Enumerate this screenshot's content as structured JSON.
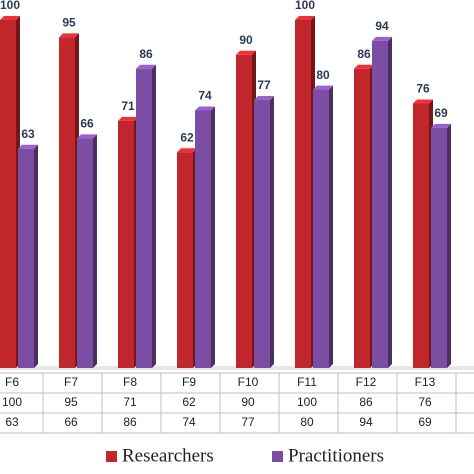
{
  "chart_data": {
    "type": "bar",
    "categories": [
      "F6",
      "F7",
      "F8",
      "F9",
      "F10",
      "F11",
      "F12",
      "F13"
    ],
    "series": [
      {
        "name": "Researchers",
        "color": "#c0262b",
        "values": [
          100,
          95,
          71,
          62,
          90,
          100,
          86,
          76
        ]
      },
      {
        "name": "Practitioners",
        "color": "#7b4ea3",
        "values": [
          63,
          66,
          86,
          74,
          77,
          80,
          94,
          69
        ]
      }
    ],
    "ylim": [
      0,
      100
    ]
  }
}
